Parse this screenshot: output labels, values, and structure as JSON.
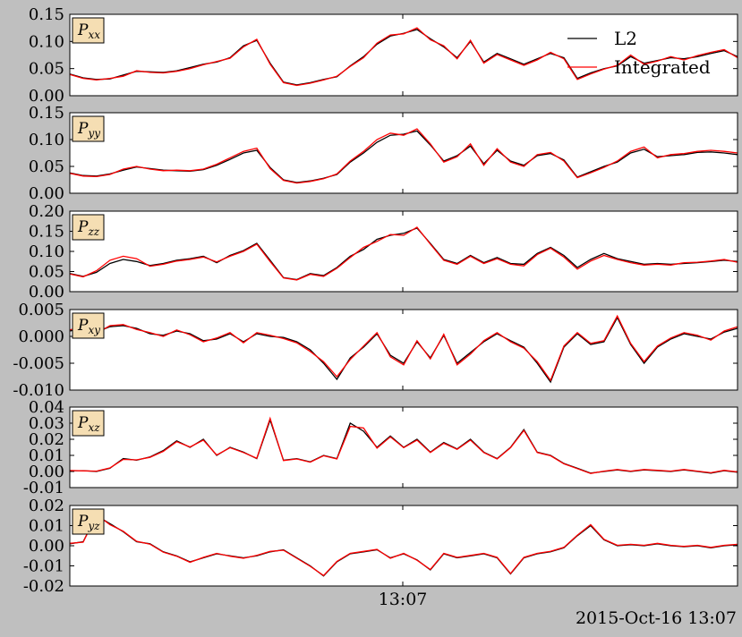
{
  "timestamp": "2015-Oct-16 13:07",
  "chart_data": {
    "type": "line",
    "x_tick_labels": [
      "13:07"
    ],
    "legend": {
      "placement": "top-right",
      "entries": [
        {
          "name": "L2",
          "color": "#000000"
        },
        {
          "name": "Integrated",
          "color": "#ff0000"
        }
      ]
    },
    "label_box_color": "#f5deb3",
    "panels": [
      {
        "label": "Pxx",
        "sub": "xx",
        "ylim": [
          0,
          0.15
        ],
        "yticks": [
          "0.00",
          "0.05",
          "0.10",
          "0.15"
        ],
        "tick_values": [
          0,
          0.05,
          0.1,
          0.15
        ],
        "series": [
          {
            "name": "L2",
            "values": [
              0.04,
              0.033,
              0.03,
              0.031,
              0.038,
              0.045,
              0.044,
              0.043,
              0.046,
              0.052,
              0.058,
              0.062,
              0.07,
              0.092,
              0.102,
              0.06,
              0.025,
              0.02,
              0.024,
              0.03,
              0.035,
              0.055,
              0.072,
              0.095,
              0.11,
              0.115,
              0.122,
              0.105,
              0.09,
              0.07,
              0.1,
              0.062,
              0.078,
              0.068,
              0.058,
              0.068,
              0.078,
              0.07,
              0.032,
              0.042,
              0.05,
              0.055,
              0.072,
              0.06,
              0.065,
              0.07,
              0.068,
              0.072,
              0.078,
              0.083,
              0.072
            ]
          },
          {
            "name": "Integrated",
            "values": [
              0.039,
              0.032,
              0.029,
              0.032,
              0.036,
              0.046,
              0.043,
              0.042,
              0.045,
              0.05,
              0.057,
              0.063,
              0.069,
              0.09,
              0.104,
              0.058,
              0.024,
              0.019,
              0.023,
              0.029,
              0.036,
              0.054,
              0.07,
              0.097,
              0.112,
              0.114,
              0.125,
              0.103,
              0.092,
              0.068,
              0.102,
              0.06,
              0.076,
              0.066,
              0.056,
              0.066,
              0.08,
              0.068,
              0.03,
              0.04,
              0.049,
              0.056,
              0.075,
              0.058,
              0.064,
              0.072,
              0.066,
              0.074,
              0.08,
              0.085,
              0.07
            ]
          }
        ]
      },
      {
        "label": "Pyy",
        "sub": "yy",
        "ylim": [
          0,
          0.15
        ],
        "yticks": [
          "0.00",
          "0.05",
          "0.10",
          "0.15"
        ],
        "tick_values": [
          0,
          0.05,
          0.1,
          0.15
        ],
        "series": [
          {
            "name": "L2",
            "values": [
              0.038,
              0.033,
              0.032,
              0.036,
              0.043,
              0.049,
              0.046,
              0.043,
              0.042,
              0.041,
              0.044,
              0.052,
              0.063,
              0.075,
              0.08,
              0.048,
              0.025,
              0.02,
              0.023,
              0.028,
              0.035,
              0.058,
              0.075,
              0.095,
              0.108,
              0.11,
              0.116,
              0.09,
              0.06,
              0.07,
              0.088,
              0.055,
              0.08,
              0.06,
              0.052,
              0.07,
              0.074,
              0.062,
              0.03,
              0.04,
              0.05,
              0.058,
              0.075,
              0.082,
              0.068,
              0.07,
              0.072,
              0.076,
              0.077,
              0.075,
              0.072
            ]
          },
          {
            "name": "Integrated",
            "values": [
              0.037,
              0.032,
              0.031,
              0.035,
              0.045,
              0.05,
              0.045,
              0.042,
              0.043,
              0.042,
              0.045,
              0.054,
              0.066,
              0.078,
              0.084,
              0.046,
              0.024,
              0.019,
              0.022,
              0.027,
              0.036,
              0.06,
              0.078,
              0.1,
              0.112,
              0.108,
              0.12,
              0.092,
              0.058,
              0.068,
              0.092,
              0.052,
              0.083,
              0.058,
              0.05,
              0.072,
              0.076,
              0.06,
              0.029,
              0.038,
              0.048,
              0.06,
              0.078,
              0.086,
              0.066,
              0.072,
              0.074,
              0.078,
              0.08,
              0.078,
              0.075
            ]
          }
        ]
      },
      {
        "label": "Pzz",
        "sub": "zz",
        "ylim": [
          0,
          0.2
        ],
        "yticks": [
          "0.00",
          "0.05",
          "0.10",
          "0.15",
          "0.20"
        ],
        "tick_values": [
          0,
          0.05,
          0.1,
          0.15,
          0.2
        ],
        "series": [
          {
            "name": "L2",
            "values": [
              0.045,
              0.038,
              0.048,
              0.07,
              0.08,
              0.075,
              0.065,
              0.07,
              0.078,
              0.082,
              0.088,
              0.072,
              0.09,
              0.102,
              0.12,
              0.078,
              0.035,
              0.03,
              0.045,
              0.04,
              0.06,
              0.088,
              0.105,
              0.13,
              0.14,
              0.145,
              0.158,
              0.12,
              0.08,
              0.07,
              0.09,
              0.072,
              0.085,
              0.07,
              0.068,
              0.095,
              0.11,
              0.09,
              0.06,
              0.08,
              0.095,
              0.082,
              0.075,
              0.068,
              0.07,
              0.068,
              0.07,
              0.072,
              0.075,
              0.078,
              0.075
            ]
          },
          {
            "name": "Integrated",
            "values": [
              0.044,
              0.037,
              0.052,
              0.078,
              0.088,
              0.082,
              0.063,
              0.068,
              0.076,
              0.08,
              0.086,
              0.074,
              0.088,
              0.1,
              0.118,
              0.075,
              0.034,
              0.029,
              0.043,
              0.038,
              0.058,
              0.085,
              0.11,
              0.125,
              0.142,
              0.14,
              0.16,
              0.118,
              0.078,
              0.068,
              0.088,
              0.07,
              0.082,
              0.068,
              0.064,
              0.092,
              0.108,
              0.086,
              0.056,
              0.076,
              0.09,
              0.08,
              0.072,
              0.066,
              0.068,
              0.066,
              0.072,
              0.073,
              0.076,
              0.08,
              0.073
            ]
          }
        ]
      },
      {
        "label": "Pxy",
        "sub": "xy",
        "ylim": [
          -0.01,
          0.005
        ],
        "yticks": [
          "-0.010",
          "-0.005",
          "0.000",
          "0.005"
        ],
        "tick_values": [
          -0.01,
          -0.005,
          0.0,
          0.005
        ],
        "series": [
          {
            "name": "L2",
            "values": [
              0.001,
              0.0015,
              0.0008,
              0.0018,
              0.002,
              0.0015,
              0.0005,
              0.0002,
              0.001,
              0.0005,
              -0.0008,
              -0.0005,
              0.0005,
              -0.001,
              0.0005,
              0.0,
              -0.0002,
              -0.001,
              -0.0025,
              -0.005,
              -0.008,
              -0.004,
              -0.002,
              0.0005,
              -0.0035,
              -0.005,
              -0.001,
              -0.004,
              0.0002,
              -0.005,
              -0.003,
              -0.001,
              0.0005,
              -0.0008,
              -0.002,
              -0.005,
              -0.0085,
              -0.002,
              0.0005,
              -0.0015,
              -0.001,
              0.0035,
              -0.0015,
              -0.005,
              -0.002,
              -0.0005,
              0.0005,
              0.0,
              -0.0005,
              0.0008,
              0.0015
            ]
          },
          {
            "name": "Integrated",
            "values": [
              0.0012,
              0.0018,
              0.0006,
              0.002,
              0.0022,
              0.0013,
              0.0007,
              0.0,
              0.0012,
              0.0003,
              -0.001,
              -0.0003,
              0.0007,
              -0.0012,
              0.0007,
              0.0002,
              -0.0004,
              -0.0012,
              -0.0028,
              -0.0047,
              -0.0075,
              -0.0043,
              -0.0018,
              0.0007,
              -0.0038,
              -0.0053,
              -0.0008,
              -0.0042,
              0.0004,
              -0.0053,
              -0.0033,
              -0.0008,
              0.0007,
              -0.001,
              -0.0022,
              -0.0047,
              -0.0082,
              -0.0018,
              0.0007,
              -0.0013,
              -0.0008,
              0.0038,
              -0.0013,
              -0.0047,
              -0.0018,
              -0.0003,
              0.0007,
              0.0002,
              -0.0007,
              0.001,
              0.0018
            ]
          }
        ]
      },
      {
        "label": "Pxz",
        "sub": "xz",
        "ylim": [
          -0.01,
          0.04
        ],
        "yticks": [
          "-0.01",
          "0.00",
          "0.01",
          "0.02",
          "0.03",
          "0.04"
        ],
        "tick_values": [
          -0.01,
          0.0,
          0.01,
          0.02,
          0.03,
          0.04
        ],
        "series": [
          {
            "name": "L2",
            "values": [
              0.0005,
              0.0005,
              0.0,
              0.002,
              0.008,
              0.007,
              0.009,
              0.013,
              0.019,
              0.015,
              0.02,
              0.01,
              0.015,
              0.012,
              0.008,
              0.032,
              0.007,
              0.008,
              0.006,
              0.01,
              0.008,
              0.03,
              0.025,
              0.015,
              0.022,
              0.015,
              0.02,
              0.012,
              0.018,
              0.014,
              0.02,
              0.012,
              0.008,
              0.015,
              0.026,
              0.012,
              0.01,
              0.005,
              0.002,
              -0.001,
              0.0,
              0.001,
              0.0,
              0.001,
              0.0005,
              0.0,
              0.001,
              0.0,
              -0.001,
              0.0005,
              -0.0005
            ]
          },
          {
            "name": "Integrated",
            "values": [
              0.0006,
              0.0004,
              0.0002,
              0.0022,
              0.0075,
              0.0072,
              0.0088,
              0.0125,
              0.0185,
              0.0152,
              0.0195,
              0.0102,
              0.0148,
              0.0118,
              0.0082,
              0.033,
              0.0068,
              0.0078,
              0.0058,
              0.0098,
              0.0078,
              0.028,
              0.027,
              0.0145,
              0.0215,
              0.0148,
              0.0195,
              0.0118,
              0.0175,
              0.0138,
              0.0195,
              0.0118,
              0.0078,
              0.0148,
              0.0255,
              0.0118,
              0.0098,
              0.0048,
              0.0018,
              -0.0012,
              0.0002,
              0.0012,
              0.0002,
              0.0012,
              0.0007,
              0.0002,
              0.0012,
              0.0002,
              -0.0008,
              0.0007,
              -0.0003
            ]
          }
        ]
      },
      {
        "label": "Pyz",
        "sub": "yz",
        "ylim": [
          -0.02,
          0.02
        ],
        "yticks": [
          "-0.02",
          "-0.01",
          "0.00",
          "0.01",
          "0.02"
        ],
        "tick_values": [
          -0.02,
          -0.01,
          0.0,
          0.01,
          0.02
        ],
        "series": [
          {
            "name": "L2",
            "values": [
              0.001,
              0.002,
              0.015,
              0.011,
              0.007,
              0.002,
              0.001,
              -0.003,
              -0.005,
              -0.008,
              -0.006,
              -0.004,
              -0.005,
              -0.006,
              -0.005,
              -0.003,
              -0.002,
              -0.006,
              -0.01,
              -0.015,
              -0.008,
              -0.004,
              -0.003,
              -0.002,
              -0.006,
              -0.004,
              -0.007,
              -0.012,
              -0.004,
              -0.006,
              -0.005,
              -0.004,
              -0.006,
              -0.014,
              -0.006,
              -0.004,
              -0.003,
              -0.001,
              0.005,
              0.01,
              0.003,
              0.0,
              0.0005,
              0.0,
              0.001,
              0.0,
              -0.0005,
              0.0,
              -0.001,
              0.0,
              0.0005
            ]
          },
          {
            "name": "Integrated",
            "values": [
              0.0012,
              0.0018,
              0.0155,
              0.0105,
              0.0072,
              0.0022,
              0.0008,
              -0.0032,
              -0.0052,
              -0.0082,
              -0.0058,
              -0.0038,
              -0.0052,
              -0.0062,
              -0.0048,
              -0.0028,
              -0.0022,
              -0.0062,
              -0.0102,
              -0.0148,
              -0.0078,
              -0.0038,
              -0.0028,
              -0.0018,
              -0.0062,
              -0.0038,
              -0.0072,
              -0.0118,
              -0.0038,
              -0.0058,
              -0.0048,
              -0.0038,
              -0.0058,
              -0.0138,
              -0.0058,
              -0.0038,
              -0.0028,
              -0.0008,
              0.0052,
              0.0105,
              0.0032,
              0.0002,
              0.0007,
              0.0002,
              0.0012,
              0.0002,
              -0.0003,
              0.0002,
              -0.0008,
              0.0002,
              0.0007
            ]
          }
        ]
      }
    ]
  }
}
